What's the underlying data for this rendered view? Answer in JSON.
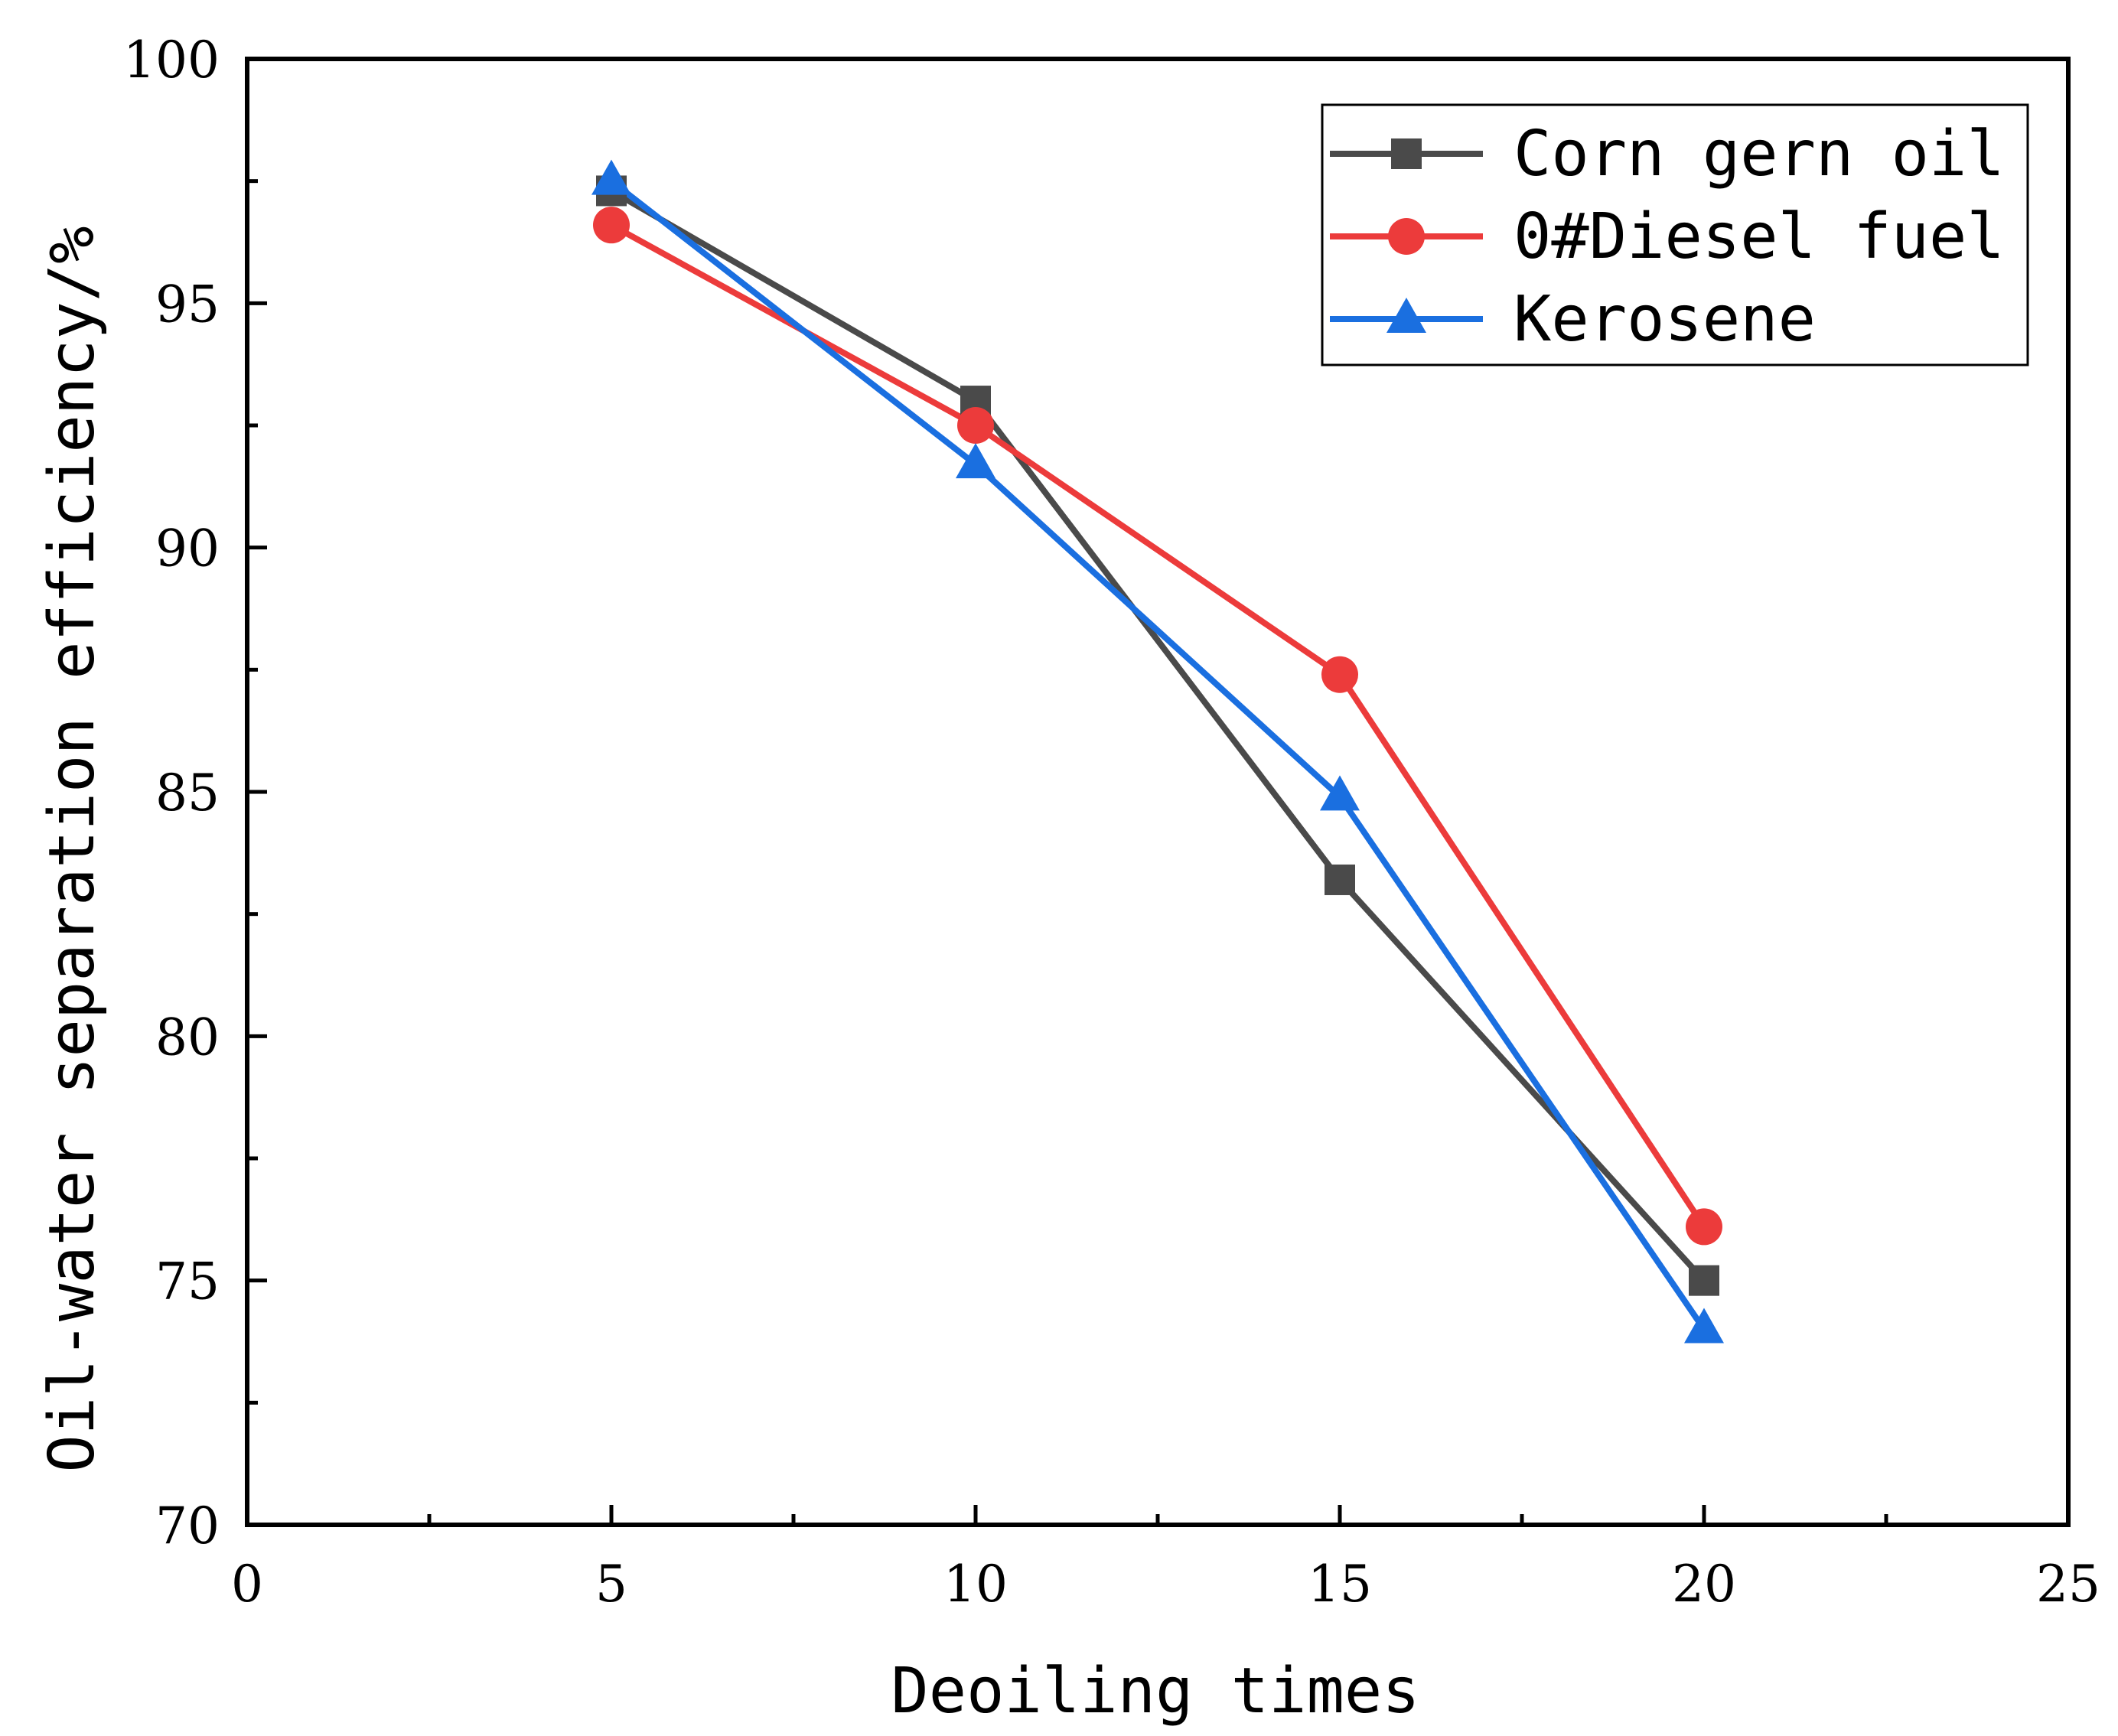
{
  "chart_data": {
    "type": "line",
    "title": "",
    "xlabel": "Deoiling times",
    "ylabel": "Oil-water separation efficiency/%",
    "xlim": [
      0,
      25
    ],
    "ylim": [
      70,
      100
    ],
    "x_ticks": [
      0,
      5,
      10,
      15,
      20,
      25
    ],
    "x_minor_ticks": [
      2.5,
      7.5,
      12.5,
      17.5,
      22.5
    ],
    "y_ticks": [
      70,
      75,
      80,
      85,
      90,
      95,
      100
    ],
    "y_minor_ticks": [
      72.5,
      77.5,
      82.5,
      87.5,
      92.5,
      97.5
    ],
    "x_tick_labels": [
      "0",
      "5",
      "10",
      "15",
      "20",
      "25"
    ],
    "y_tick_labels": [
      "70",
      "75",
      "80",
      "85",
      "90",
      "95",
      "100"
    ],
    "grid": false,
    "legend_position": "top-right",
    "x": [
      5,
      10,
      15,
      20
    ],
    "series": [
      {
        "name": "Corn gern oil",
        "values": [
          97.3,
          93.0,
          83.2,
          75.0
        ],
        "color": "#4a4a4a",
        "marker": "square"
      },
      {
        "name": "0#Diesel fuel",
        "values": [
          96.6,
          92.5,
          87.4,
          76.1
        ],
        "color": "#ec3b3b",
        "marker": "circle"
      },
      {
        "name": "Kerosene",
        "values": [
          97.5,
          91.7,
          84.9,
          74.0
        ],
        "color": "#1a6fe0",
        "marker": "triangle"
      }
    ]
  }
}
